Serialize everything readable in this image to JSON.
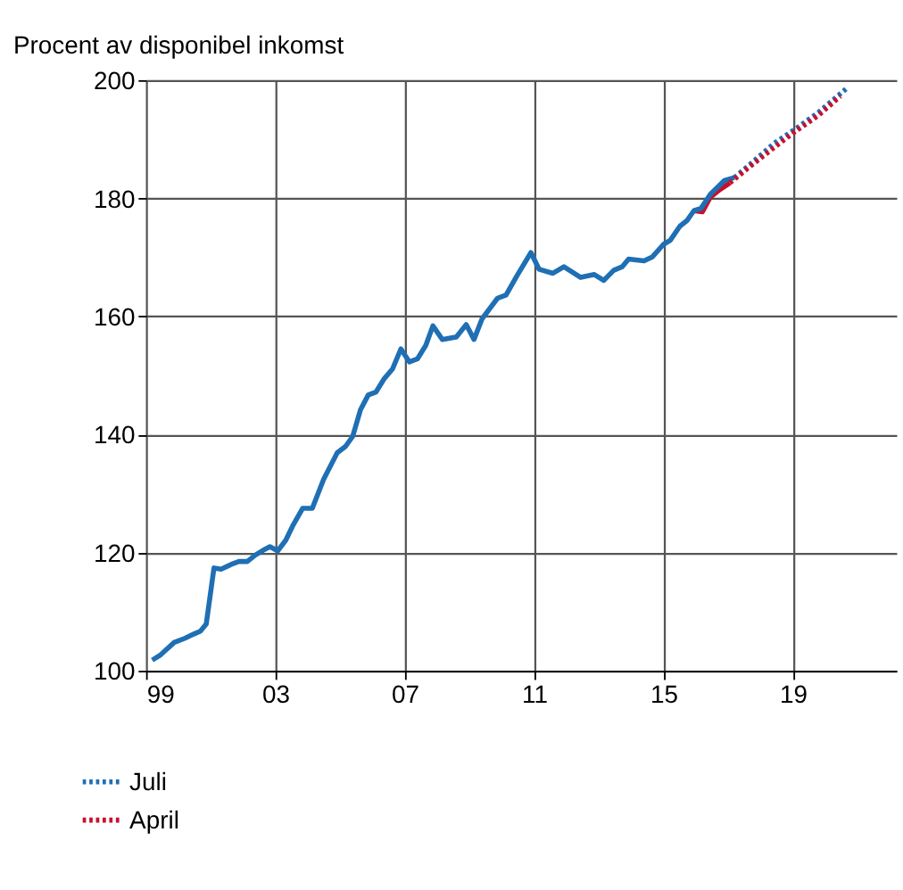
{
  "chart_data": {
    "type": "line",
    "subtitle": "Procent av disponibel inkomst",
    "xlim": [
      1999,
      2022.2
    ],
    "ylim": [
      100,
      200
    ],
    "xticks": [
      {
        "value": 1999,
        "label": "99"
      },
      {
        "value": 2003,
        "label": "03"
      },
      {
        "value": 2007,
        "label": "07"
      },
      {
        "value": 2011,
        "label": "11"
      },
      {
        "value": 2015,
        "label": "15"
      },
      {
        "value": 2019,
        "label": "19"
      }
    ],
    "yticks": [
      100,
      120,
      140,
      160,
      180,
      200
    ],
    "grid": true,
    "legend": "bottom left",
    "series": [
      {
        "color": "#c8102e",
        "line_style": "solid",
        "x": [
          2015.94,
          2016.2,
          2016.45,
          2016.75,
          2017.05
        ],
        "values": [
          177.9,
          177.7,
          180.2,
          181.5,
          182.6
        ]
      },
      {
        "color": "#1f6fb4",
        "line_style": "solid",
        "x": [
          1999.19,
          1999.45,
          1999.87,
          2000.2,
          2000.47,
          2000.68,
          2000.86,
          2001.1,
          2001.32,
          2001.63,
          2001.87,
          2002.13,
          2002.38,
          2002.62,
          2002.83,
          2003.07,
          2003.32,
          2003.55,
          2003.84,
          2004.14,
          2004.49,
          2004.91,
          2005.17,
          2005.39,
          2005.63,
          2005.87,
          2006.11,
          2006.37,
          2006.62,
          2006.88,
          2007.14,
          2007.39,
          2007.65,
          2007.87,
          2008.16,
          2008.59,
          2008.9,
          2009.14,
          2009.39,
          2009.87,
          2010.13,
          2010.47,
          2010.9,
          2011.15,
          2011.58,
          2011.92,
          2012.44,
          2012.86,
          2013.15,
          2013.46,
          2013.72,
          2013.92,
          2014.4,
          2014.66,
          2015.0,
          2015.21,
          2015.51,
          2015.72,
          2015.94,
          2016.16,
          2016.45,
          2016.88,
          2017.19
        ],
        "values": [
          101.8,
          102.7,
          104.8,
          105.5,
          106.2,
          106.7,
          107.9,
          117.4,
          117.2,
          118,
          118.5,
          118.5,
          119.6,
          120.4,
          121,
          120.3,
          122.1,
          124.7,
          127.5,
          127.5,
          132.4,
          136.9,
          138,
          139.7,
          144.2,
          146.7,
          147.2,
          149.5,
          151.1,
          154.5,
          152.3,
          152.8,
          155.1,
          158.4,
          156.1,
          156.5,
          158.6,
          156.1,
          159.6,
          163.1,
          163.6,
          166.9,
          170.8,
          168,
          167.3,
          168.4,
          166.6,
          167.1,
          166.1,
          167.8,
          168.4,
          169.7,
          169.4,
          170.1,
          172.2,
          172.9,
          175.3,
          176.2,
          177.9,
          178.3,
          180.7,
          183,
          183.5
        ]
      },
      {
        "name": "Juli",
        "color": "#1f6fb4",
        "line_style": "dotted",
        "x": [
          2017.19,
          2017.73,
          2018.42,
          2019.07,
          2019.78,
          2020.64
        ],
        "values": [
          183.5,
          186,
          189.3,
          191.7,
          194.5,
          198.5
        ]
      },
      {
        "name": "April",
        "color": "#c8102e",
        "line_style": "dotted",
        "x": [
          2017.05,
          2017.7,
          2018.42,
          2019.07,
          2019.78,
          2020.47
        ],
        "values": [
          182.6,
          185.5,
          188.6,
          191.3,
          194,
          197.3
        ]
      }
    ]
  }
}
